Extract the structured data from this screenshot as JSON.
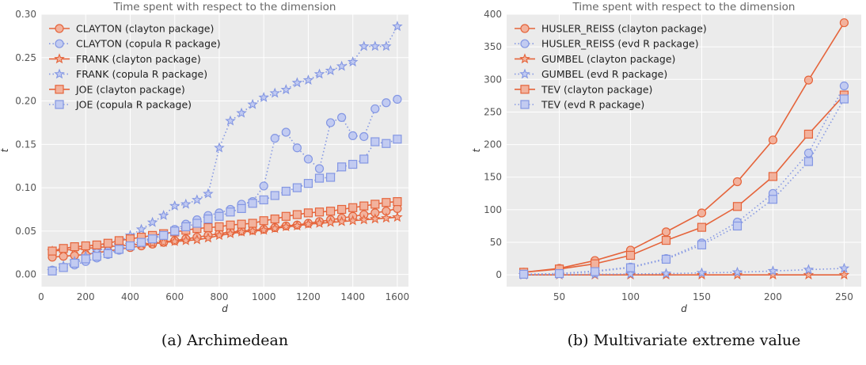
{
  "colors": {
    "background": "#EBEBEB",
    "grid": "#FFFFFF",
    "orange": "#E5643B",
    "blue": "#8497E3",
    "text": "#555555"
  },
  "panels": [
    {
      "caption": "(a) Archimedean"
    },
    {
      "caption": "(b) Multivariate extreme value"
    }
  ],
  "chart_data": [
    {
      "type": "line",
      "title": "Time spent with respect to the dimension",
      "xlabel": "d",
      "ylabel": "t",
      "xlim": [
        0,
        1650
      ],
      "ylim": [
        -0.014,
        0.3
      ],
      "xticks": [
        0,
        200,
        400,
        600,
        800,
        1000,
        1200,
        1400,
        1600
      ],
      "yticks": [
        0.0,
        0.05,
        0.1,
        0.15,
        0.2,
        0.25,
        0.3
      ],
      "ytick_labels": [
        "0.00",
        "0.05",
        "0.10",
        "0.15",
        "0.20",
        "0.25",
        "0.30"
      ],
      "grid": true,
      "legend": "top-left",
      "x": [
        50,
        100,
        150,
        200,
        250,
        300,
        350,
        400,
        450,
        500,
        550,
        600,
        650,
        700,
        750,
        800,
        850,
        900,
        950,
        1000,
        1050,
        1100,
        1150,
        1200,
        1250,
        1300,
        1350,
        1400,
        1450,
        1500,
        1550,
        1600
      ],
      "series": [
        {
          "name": "CLAYTON (clayton package)",
          "marker": "circle",
          "line": "solid",
          "color": "orange",
          "values": [
            0.02,
            0.021,
            0.022,
            0.023,
            0.025,
            0.027,
            0.029,
            0.031,
            0.033,
            0.035,
            0.037,
            0.039,
            0.041,
            0.043,
            0.045,
            0.047,
            0.049,
            0.05,
            0.051,
            0.052,
            0.054,
            0.056,
            0.057,
            0.059,
            0.061,
            0.063,
            0.065,
            0.067,
            0.069,
            0.071,
            0.073,
            0.076
          ]
        },
        {
          "name": "CLAYTON (copula R package)",
          "marker": "circle",
          "line": "dotted",
          "color": "blue",
          "values": [
            0.005,
            0.008,
            0.011,
            0.015,
            0.019,
            0.023,
            0.028,
            0.034,
            0.039,
            0.042,
            0.046,
            0.052,
            0.058,
            0.063,
            0.068,
            0.071,
            0.075,
            0.081,
            0.084,
            0.102,
            0.157,
            0.164,
            0.146,
            0.133,
            0.122,
            0.175,
            0.181,
            0.16,
            0.159,
            0.191,
            0.198,
            0.202
          ]
        },
        {
          "name": "FRANK (clayton package)",
          "marker": "star",
          "line": "solid",
          "color": "orange",
          "values": [
            0.027,
            0.028,
            0.029,
            0.03,
            0.031,
            0.032,
            0.033,
            0.034,
            0.035,
            0.036,
            0.037,
            0.038,
            0.039,
            0.04,
            0.042,
            0.045,
            0.047,
            0.049,
            0.05,
            0.051,
            0.053,
            0.055,
            0.056,
            0.058,
            0.059,
            0.06,
            0.061,
            0.062,
            0.063,
            0.064,
            0.065,
            0.066
          ]
        },
        {
          "name": "FRANK (copula R package)",
          "marker": "star",
          "line": "dotted",
          "color": "blue",
          "values": [
            0.004,
            0.01,
            0.015,
            0.021,
            0.027,
            0.032,
            0.038,
            0.045,
            0.052,
            0.06,
            0.068,
            0.079,
            0.081,
            0.086,
            0.093,
            0.146,
            0.177,
            0.186,
            0.196,
            0.204,
            0.209,
            0.213,
            0.221,
            0.224,
            0.231,
            0.235,
            0.24,
            0.245,
            0.263,
            0.263,
            0.263,
            0.286
          ]
        },
        {
          "name": "JOE (clayton package)",
          "marker": "square",
          "line": "solid",
          "color": "orange",
          "values": [
            0.027,
            0.03,
            0.032,
            0.033,
            0.034,
            0.036,
            0.039,
            0.041,
            0.043,
            0.045,
            0.047,
            0.049,
            0.051,
            0.053,
            0.054,
            0.055,
            0.057,
            0.058,
            0.059,
            0.062,
            0.064,
            0.067,
            0.069,
            0.071,
            0.072,
            0.073,
            0.075,
            0.077,
            0.079,
            0.081,
            0.083,
            0.084
          ]
        },
        {
          "name": "JOE (copula R package)",
          "marker": "square",
          "line": "dotted",
          "color": "blue",
          "values": [
            0.004,
            0.008,
            0.013,
            0.018,
            0.021,
            0.024,
            0.029,
            0.033,
            0.037,
            0.041,
            0.045,
            0.05,
            0.055,
            0.059,
            0.064,
            0.067,
            0.072,
            0.076,
            0.082,
            0.086,
            0.091,
            0.096,
            0.1,
            0.105,
            0.111,
            0.112,
            0.124,
            0.127,
            0.133,
            0.153,
            0.151,
            0.156
          ]
        }
      ]
    },
    {
      "type": "line",
      "title": "Time spent with respect to the dimension",
      "xlabel": "d",
      "ylabel": "t",
      "xlim": [
        13,
        262
      ],
      "ylim": [
        -18,
        400
      ],
      "xticks": [
        50,
        100,
        150,
        200,
        250
      ],
      "yticks": [
        0,
        50,
        100,
        150,
        200,
        250,
        300,
        350,
        400
      ],
      "ytick_labels": [
        "0",
        "50",
        "100",
        "150",
        "200",
        "250",
        "300",
        "350",
        "400"
      ],
      "grid": true,
      "legend": "top-left",
      "x": [
        25,
        50,
        75,
        100,
        125,
        150,
        175,
        200,
        225,
        250
      ],
      "series": [
        {
          "name": "HUSLER_REISS (clayton package)",
          "marker": "circle",
          "line": "solid",
          "color": "orange",
          "values": [
            4,
            10,
            22,
            38,
            66,
            95,
            143,
            207,
            299,
            387
          ]
        },
        {
          "name": "HUSLER_REISS (evd R package)",
          "marker": "circle",
          "line": "dotted",
          "color": "blue",
          "values": [
            1,
            2,
            6,
            12,
            25,
            49,
            81,
            125,
            187,
            290
          ]
        },
        {
          "name": "GUMBEL (clayton package)",
          "marker": "star",
          "line": "solid",
          "color": "orange",
          "values": [
            0,
            0,
            0,
            0,
            0,
            0,
            0,
            0,
            0,
            0
          ]
        },
        {
          "name": "GUMBEL (evd R package)",
          "marker": "star",
          "line": "dotted",
          "color": "blue",
          "values": [
            0,
            0.5,
            1,
            1.5,
            2,
            3,
            4,
            6,
            8,
            10
          ]
        },
        {
          "name": "TEV (clayton package)",
          "marker": "square",
          "line": "solid",
          "color": "orange",
          "values": [
            4,
            9,
            17,
            30,
            53,
            73,
            105,
            151,
            216,
            276
          ]
        },
        {
          "name": "TEV (evd R package)",
          "marker": "square",
          "line": "dotted",
          "color": "blue",
          "values": [
            1,
            2,
            5,
            11,
            24,
            46,
            75,
            116,
            174,
            270
          ]
        }
      ]
    }
  ]
}
